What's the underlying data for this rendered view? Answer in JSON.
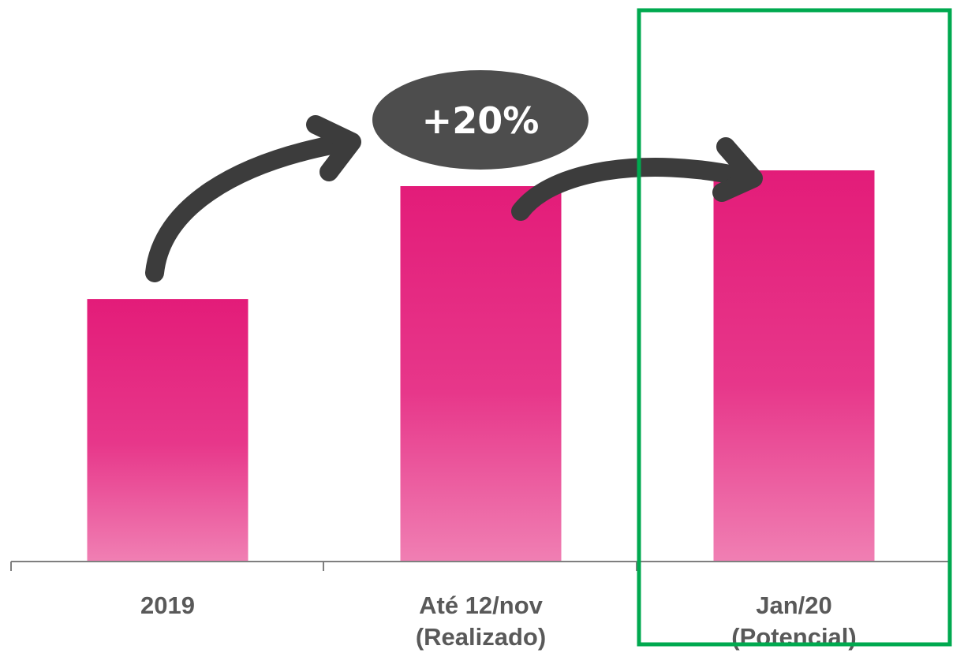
{
  "chart_data": {
    "type": "bar",
    "categories": [
      [
        "2019"
      ],
      [
        "Até 12/nov",
        "(Realizado)"
      ],
      [
        "Jan/20",
        "(Potencial)"
      ]
    ],
    "values": [
      100,
      143,
      149
    ],
    "ylim": [
      0,
      210
    ],
    "grid": false,
    "bar_color": "#e31c79",
    "highlight_color": "#00a94f",
    "highlighted_category_index": 2,
    "annotation": {
      "label": "+20%",
      "color": "#4d4d4d"
    }
  }
}
